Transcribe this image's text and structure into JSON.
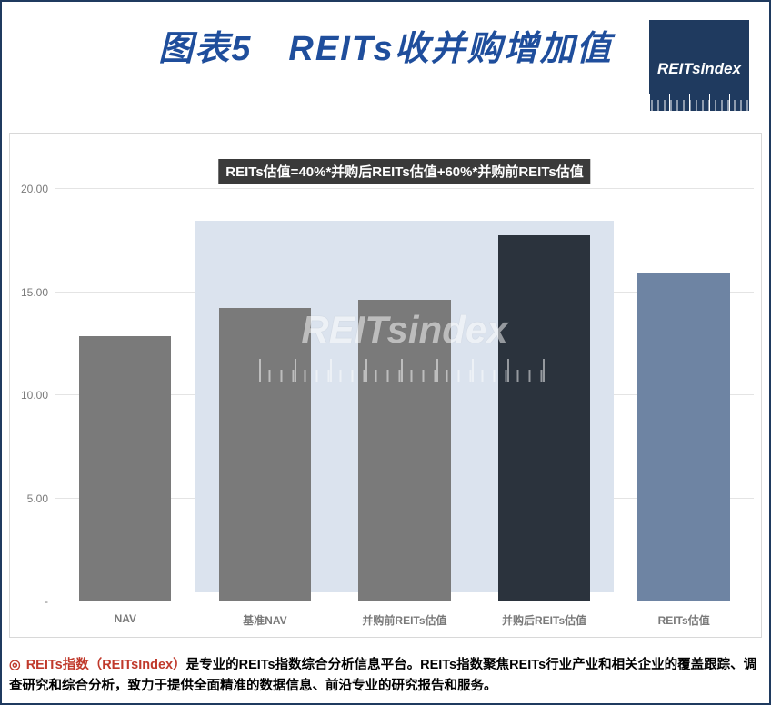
{
  "title": {
    "text": "图表5　REITs收并购增加值",
    "color": "#1f4e9c",
    "fontsize": 38
  },
  "logo": {
    "text": "REITsindex",
    "bg_color": "#1f3a5f"
  },
  "chart": {
    "type": "bar",
    "caption": "REITs估值=40%*并购后REITs估值+60%*并购前REITs估值",
    "caption_bg": "#3a3a3a",
    "categories": [
      "NAV",
      "基准NAV",
      "并购前REITs估值",
      "并购后REITs估值",
      "REITs估值"
    ],
    "values": [
      12.8,
      14.2,
      14.6,
      17.7,
      15.9
    ],
    "bar_colors": [
      "#7a7a7a",
      "#7a7a7a",
      "#7a7a7a",
      "#2b333d",
      "#6e84a3"
    ],
    "ylim": [
      0,
      20
    ],
    "ytick_step": 5,
    "ytick_labels": [
      "-",
      "5.00",
      "10.00",
      "15.00",
      "20.00"
    ],
    "grid_color": "#e4e4e4",
    "axis_label_color": "#7a7a7a",
    "axis_label_fontsize": 12,
    "background_color": "#ffffff",
    "bar_width": 0.66,
    "highlight_band": {
      "color": "#dbe3ee",
      "from_category_index": 1,
      "to_category_index": 3,
      "height_value": 18.4
    },
    "watermark": {
      "text": "REITsindex",
      "top_pct": 38
    }
  },
  "footer": {
    "bullet": "◎",
    "brand": "REITs指数（REITsIndex）",
    "text_rest": "是专业的REITs指数综合分析信息平台。REITs指数聚焦REITs行业产业和相关企业的覆盖跟踪、调查研究和综合分析，致力于提供全面精准的数据信息、前沿专业的研究报告和服务。",
    "text_color": "#000000"
  }
}
